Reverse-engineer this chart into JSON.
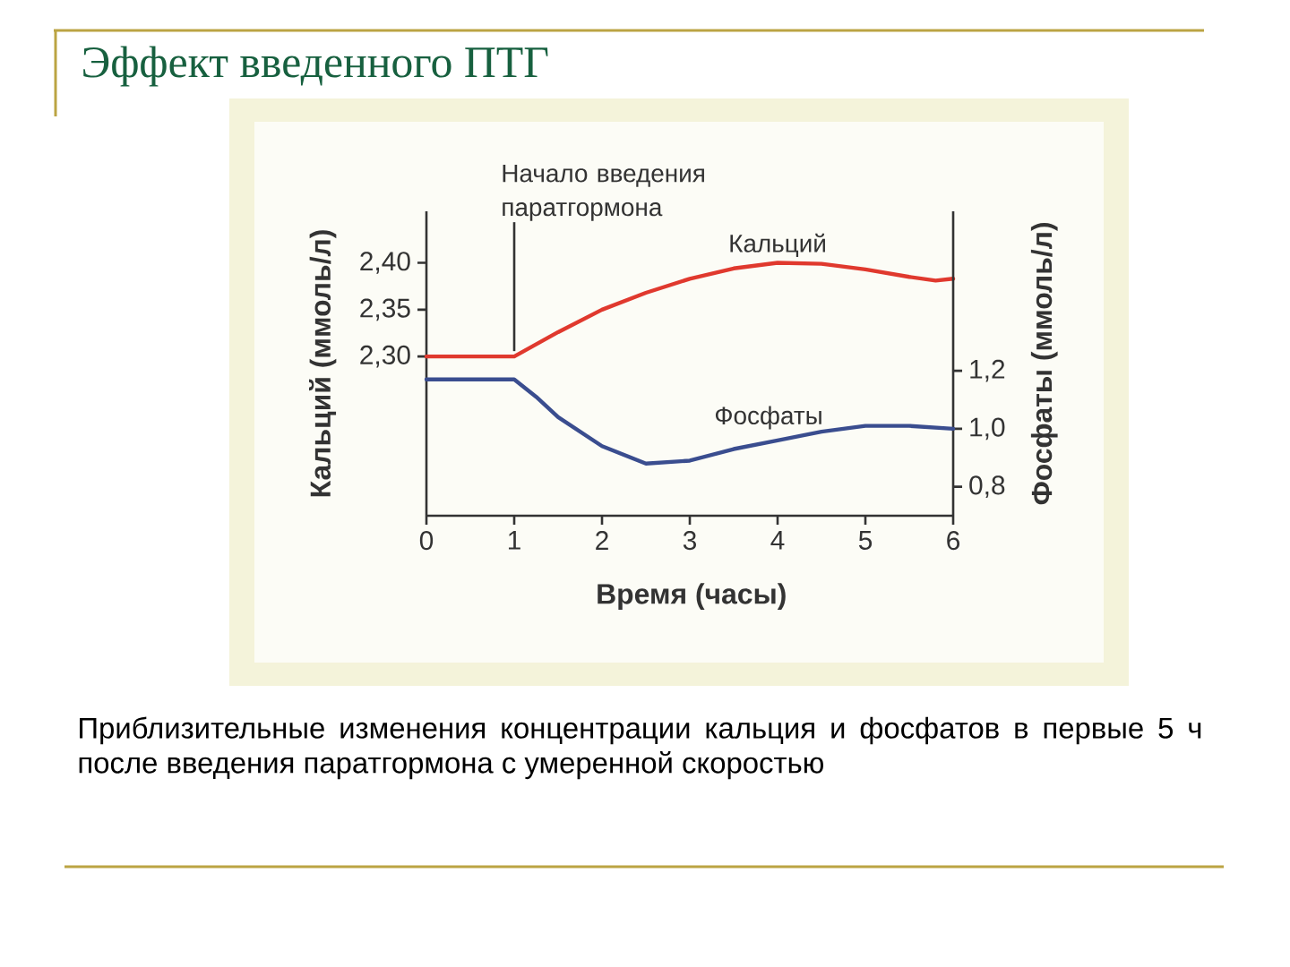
{
  "chart_data": {
    "type": "line",
    "title": "Эффект введенного ПТГ",
    "xlabel": "Время (часы)",
    "ylabel": "Кальций (ммоль/л)",
    "y2label": "Фосфаты (ммоль/л)",
    "series": [
      {
        "name": "Кальций",
        "color": "#e0392e",
        "x": [
          0,
          1,
          1.25,
          1.5,
          2,
          2.5,
          3,
          3.5,
          4,
          4.5,
          5,
          5.5,
          5.8,
          6
        ],
        "values": [
          2.3,
          2.3,
          2.313,
          2.326,
          2.35,
          2.368,
          2.383,
          2.394,
          2.4,
          2.399,
          2.393,
          2.385,
          2.381,
          2.383
        ]
      },
      {
        "name": "Фосфаты",
        "color": "#3a4d8f",
        "axis": "y2",
        "x": [
          0,
          1,
          1.25,
          1.5,
          2,
          2.5,
          3,
          3.5,
          4,
          4.5,
          5,
          5.5,
          6
        ],
        "values": [
          1.17,
          1.17,
          1.11,
          1.04,
          0.94,
          0.88,
          0.89,
          0.93,
          0.96,
          0.99,
          1.01,
          1.01,
          1.0
        ]
      }
    ],
    "xlim": [
      0,
      6
    ],
    "xticks": [
      0,
      1,
      2,
      3,
      4,
      5,
      6
    ],
    "ylim": [
      2.13,
      2.455
    ],
    "yticks": [
      {
        "value": 2.3,
        "label": "2,30"
      },
      {
        "value": 2.35,
        "label": "2,35"
      },
      {
        "value": 2.4,
        "label": "2,40"
      }
    ],
    "y2lim": [
      0.7,
      1.75
    ],
    "y2ticks": [
      {
        "value": 0.8,
        "label": "0,8"
      },
      {
        "value": 1.0,
        "label": "1,0"
      },
      {
        "value": 1.2,
        "label": "1,2"
      }
    ],
    "marker": "none",
    "line_style": "solid",
    "annotations": [
      {
        "text": "Начало введения паратгормона",
        "x": 1,
        "y": 2.3
      },
      "Приблизительные изменения концентрации кальция и фосфатов в первые 5 ч после введения паратгормона с умеренной скоростью"
    ]
  }
}
